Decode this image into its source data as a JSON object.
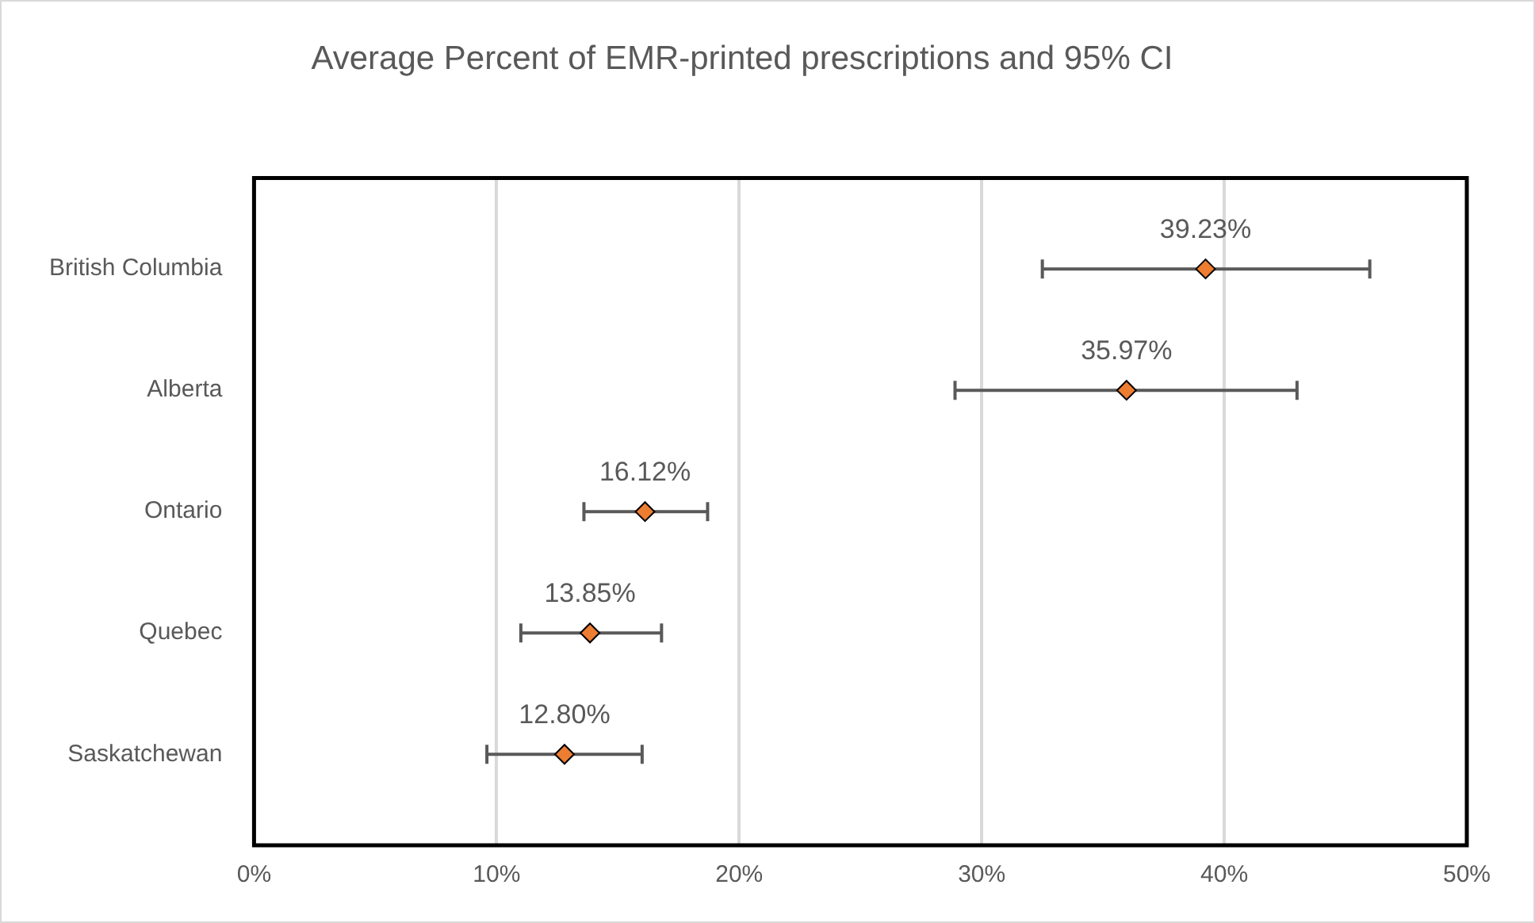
{
  "chart_data": {
    "type": "scatter",
    "orientation": "horizontal",
    "title": "Average Percent of EMR-printed prescriptions and 95% CI",
    "categories": [
      "British Columbia",
      "Alberta",
      "Ontario",
      "Quebec",
      "Saskatchewan"
    ],
    "series": [
      {
        "color": "#ed7d31",
        "values": [
          39.23,
          35.97,
          16.12,
          13.85,
          12.8
        ],
        "errors": [
          [
            32.5,
            46.0
          ],
          [
            28.9,
            43.0
          ],
          [
            13.6,
            18.7
          ],
          [
            11.0,
            16.8
          ],
          [
            9.6,
            16.0
          ]
        ],
        "value_labels": [
          "39.23%",
          "35.97%",
          "16.12%",
          "13.85%",
          "12.80%"
        ]
      }
    ],
    "xlim": [
      0,
      50
    ],
    "xticks": [
      {
        "value": 0,
        "label": "0%"
      },
      {
        "value": 10,
        "label": "10%"
      },
      {
        "value": 20,
        "label": "20%"
      },
      {
        "value": 30,
        "label": "30%"
      },
      {
        "value": 40,
        "label": "40%"
      },
      {
        "value": 50,
        "label": "50%"
      }
    ],
    "grid": "x",
    "legend": false,
    "marker": "diamond"
  }
}
